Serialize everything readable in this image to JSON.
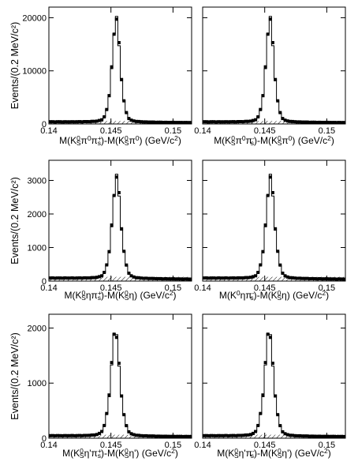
{
  "y_axis_label": "Events/(0.2 MeV/c²)",
  "chart_data": [
    {
      "type": "line",
      "row": 0,
      "col": 0,
      "ylim": [
        0,
        22000
      ],
      "xlim": [
        0.14,
        0.1515
      ],
      "yticks": [
        "0",
        "10000",
        "20000"
      ],
      "ytick_values": [
        0,
        10000,
        20000
      ],
      "xticks": [
        "0.14",
        "0.145",
        "0.15"
      ],
      "xtick_values": [
        0.14,
        0.145,
        0.15
      ],
      "peak_x": 0.14542,
      "peak_y": 20500,
      "width": 0.00028,
      "background": 400,
      "xlabel_parts": [
        "M(K",
        "0",
        "S",
        "π",
        "0",
        "π",
        "",
        "+",
        "s",
        ")-M(K",
        "0",
        "S",
        "π",
        "0",
        ") (GeV/c",
        "2",
        ")"
      ]
    },
    {
      "type": "line",
      "row": 0,
      "col": 1,
      "ylim": [
        0,
        22000
      ],
      "xlim": [
        0.14,
        0.1515
      ],
      "yticks": [],
      "ytick_values": [
        0,
        10000,
        20000
      ],
      "xticks": [
        "0.14",
        "0.145",
        "0.15"
      ],
      "xtick_values": [
        0.14,
        0.145,
        0.15
      ],
      "peak_x": 0.14542,
      "peak_y": 20500,
      "width": 0.00028,
      "background": 400,
      "xlabel_parts": [
        "M(K",
        "0",
        "S",
        "π",
        "0",
        "π",
        "",
        "-",
        "s",
        ")-M(K",
        "0",
        "S",
        "π",
        "0",
        ") (GeV/c",
        "2",
        ")"
      ]
    },
    {
      "type": "line",
      "row": 1,
      "col": 0,
      "ylim": [
        0,
        3600
      ],
      "xlim": [
        0.14,
        0.1515
      ],
      "yticks": [
        "0",
        "1000",
        "2000",
        "3000"
      ],
      "ytick_values": [
        0,
        1000,
        2000,
        3000
      ],
      "xticks": [
        "0.14",
        "0.145",
        "0.15"
      ],
      "xtick_values": [
        0.14,
        0.145,
        0.15
      ],
      "peak_x": 0.14545,
      "peak_y": 3200,
      "width": 0.0003,
      "background": 90,
      "xlabel_parts": [
        "M(K",
        "0",
        "S",
        "η",
        "",
        "π",
        "",
        "+",
        "s",
        ")-M(K",
        "0",
        "S",
        "η",
        "",
        ") (GeV/c",
        "2",
        ")"
      ]
    },
    {
      "type": "line",
      "row": 1,
      "col": 1,
      "ylim": [
        0,
        3600
      ],
      "xlim": [
        0.14,
        0.1515
      ],
      "yticks": [],
      "ytick_values": [
        0,
        1000,
        2000,
        3000
      ],
      "xticks": [
        "0.14",
        "0.145",
        "0.15"
      ],
      "xtick_values": [
        0.14,
        0.145,
        0.15
      ],
      "peak_x": 0.14545,
      "peak_y": 3200,
      "width": 0.0003,
      "background": 90,
      "xlabel_parts": [
        "M(K",
        "0",
        "",
        "η",
        "",
        "π",
        "",
        "-",
        "s",
        ")-M(K",
        "0",
        "S",
        "η",
        "",
        ") (GeV/c",
        "2",
        ")"
      ]
    },
    {
      "type": "line",
      "row": 2,
      "col": 0,
      "ylim": [
        0,
        2250
      ],
      "xlim": [
        0.14,
        0.1515
      ],
      "yticks": [
        "0",
        "1000",
        "2000"
      ],
      "ytick_values": [
        0,
        1000,
        2000
      ],
      "xticks": [
        "0.14",
        "0.145",
        "0.15"
      ],
      "xtick_values": [
        0.14,
        0.145,
        0.15
      ],
      "peak_x": 0.14535,
      "peak_y": 2010,
      "width": 0.00031,
      "background": 45,
      "xlabel_parts": [
        "M(K",
        "0",
        "S",
        "η'",
        "",
        "π",
        "",
        "+",
        "s",
        ")-M(K",
        "0",
        "S",
        "η'",
        "",
        ") (GeV/c",
        "2",
        ")"
      ]
    },
    {
      "type": "line",
      "row": 2,
      "col": 1,
      "ylim": [
        0,
        2250
      ],
      "xlim": [
        0.14,
        0.1515
      ],
      "yticks": [],
      "ytick_values": [
        0,
        1000,
        2000
      ],
      "xticks": [
        "0.14",
        "0.145",
        "0.15"
      ],
      "xtick_values": [
        0.14,
        0.145,
        0.15
      ],
      "peak_x": 0.14535,
      "peak_y": 2010,
      "width": 0.00031,
      "background": 45,
      "xlabel_parts": [
        "M(K",
        "0",
        "S",
        "η'",
        "",
        "π",
        "",
        "-",
        "s",
        ")-M(K",
        "0",
        "S",
        "η'",
        "",
        ") (GeV/c",
        "2",
        ")"
      ]
    }
  ]
}
